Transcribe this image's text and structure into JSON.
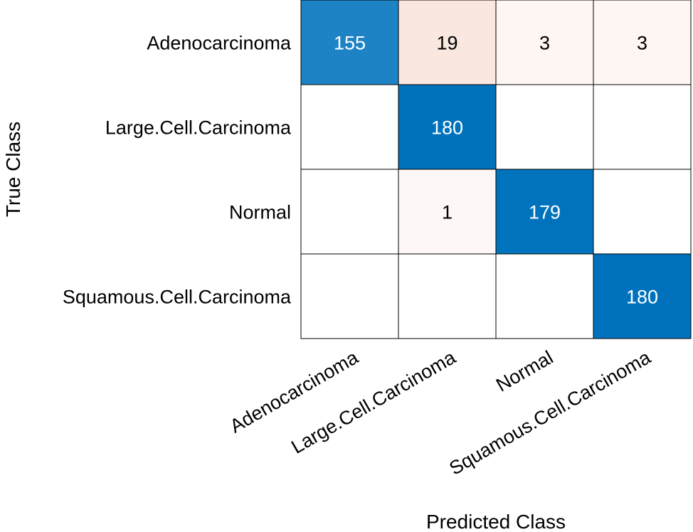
{
  "chart_data": {
    "type": "heatmap",
    "title": "",
    "xlabel": "Predicted Class",
    "ylabel": "True Class",
    "categories_x": [
      "Adenocarcinoma",
      "Large.Cell.Carcinoma",
      "Normal",
      "Squamous.Cell.Carcinoma"
    ],
    "categories_y": [
      "Adenocarcinoma",
      "Large.Cell.Carcinoma",
      "Normal",
      "Squamous.Cell.Carcinoma"
    ],
    "values": [
      [
        155,
        19,
        3,
        3
      ],
      [
        0,
        180,
        0,
        0
      ],
      [
        0,
        1,
        179,
        0
      ],
      [
        0,
        0,
        0,
        180
      ]
    ],
    "row_totals": [
      180,
      180,
      180,
      180
    ],
    "show_zero_values": false,
    "colors": {
      "diagonal": "#0072BD",
      "off_diagonal": "#D95319",
      "empty": "#ffffff",
      "grid": "#000000",
      "text_dark": "#000000",
      "text_light": "#ffffff"
    }
  }
}
